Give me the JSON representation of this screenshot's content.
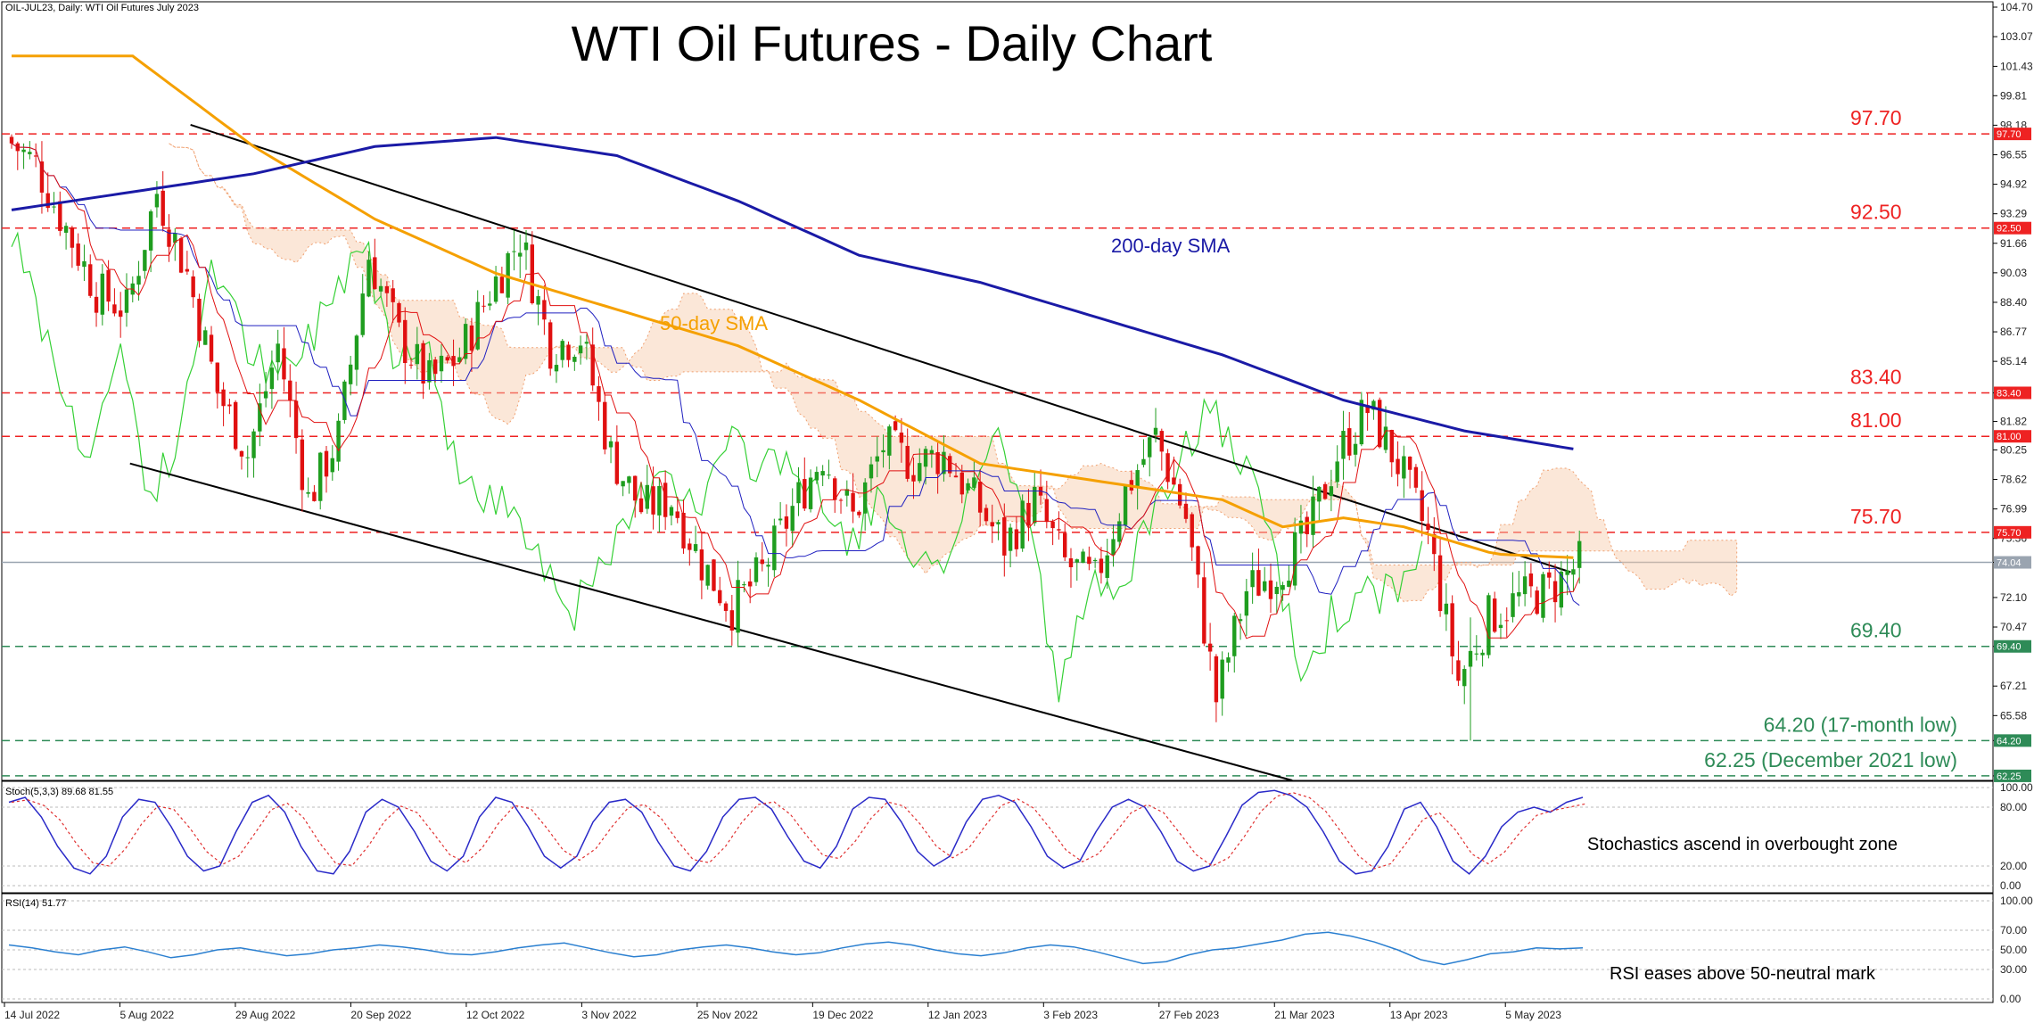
{
  "symbol_label": "OIL-JUL23, Daily:  WTI Oil Futures July 2023",
  "title": "WTI Oil Futures - Daily Chart",
  "colors": {
    "resistance": "#ee2222",
    "support": "#2e8b57",
    "sma200": "#1a1aa6",
    "sma50": "#f5a000",
    "current": "#9aa4b0",
    "candle_up": "#1f9d1f",
    "candle_down": "#e01010",
    "stoch_main": "#2a2ac8",
    "stoch_signal": "#e03030",
    "rsi": "#2a7fd0"
  },
  "annotations": {
    "sma200_label": "200-day SMA",
    "sma50_label": "50-day SMA",
    "stoch_note": "Stochastics ascend in overbought zone",
    "rsi_note": "RSI eases above 50-neutral mark"
  },
  "chart_data": [
    {
      "type": "candlestick",
      "title": "WTI Oil Futures - Daily Chart",
      "symbol": "OIL-JUL23, Daily:  WTI Oil Futures July 2023",
      "ylim": [
        62.0,
        104.7
      ],
      "y_ticks": [
        "104.70",
        "103.07",
        "101.43",
        "99.81",
        "98.18",
        "96.55",
        "94.92",
        "93.29",
        "91.66",
        "90.03",
        "88.40",
        "86.77",
        "85.14",
        "83.40",
        "81.82",
        "80.25",
        "78.62",
        "76.99",
        "75.36",
        "74.04",
        "72.10",
        "70.47",
        "69.40",
        "67.21",
        "65.58",
        "64.20",
        "62.25"
      ],
      "x_labels": [
        "14 Jul 2022",
        "5 Aug 2022",
        "29 Aug 2022",
        "20 Sep 2022",
        "12 Oct 2022",
        "3 Nov 2022",
        "25 Nov 2022",
        "19 Dec 2022",
        "12 Jan 2023",
        "3 Feb 2023",
        "27 Feb 2023",
        "21 Mar 2023",
        "13 Apr 2023",
        "5 May 2023"
      ],
      "current_price": 74.04,
      "levels": [
        {
          "value": 97.7,
          "label": "97.70",
          "badge": "97.70",
          "kind": "resistance"
        },
        {
          "value": 92.5,
          "label": "92.50",
          "badge": "92.50",
          "kind": "resistance"
        },
        {
          "value": 83.4,
          "label": "83.40",
          "badge": "83.40",
          "kind": "resistance"
        },
        {
          "value": 81.0,
          "label": "81.00",
          "badge": "81.00",
          "kind": "resistance"
        },
        {
          "value": 75.7,
          "label": "75.70",
          "badge": "75.70",
          "kind": "resistance"
        },
        {
          "value": 69.4,
          "label": "69.40",
          "badge": "69.40",
          "kind": "support"
        },
        {
          "value": 64.2,
          "label": "64.20 (17-month low)",
          "badge": "64.20",
          "kind": "support"
        },
        {
          "value": 62.25,
          "label": "62.25 (December 2021 low)",
          "badge": "62.25",
          "kind": "support"
        }
      ],
      "close_path": [
        [
          0,
          97.5
        ],
        [
          5,
          96.0
        ],
        [
          10,
          92.5
        ],
        [
          15,
          89.0
        ],
        [
          20,
          88.0
        ],
        [
          25,
          94.5
        ],
        [
          30,
          90.0
        ],
        [
          35,
          83.5
        ],
        [
          40,
          80.0
        ],
        [
          45,
          86.0
        ],
        [
          50,
          77.5
        ],
        [
          55,
          81.0
        ],
        [
          60,
          91.0
        ],
        [
          65,
          86.5
        ],
        [
          70,
          84.0
        ],
        [
          75,
          85.5
        ],
        [
          80,
          89.0
        ],
        [
          85,
          92.0
        ],
        [
          90,
          86.0
        ],
        [
          95,
          86.5
        ],
        [
          100,
          80.0
        ],
        [
          105,
          77.0
        ],
        [
          110,
          77.5
        ],
        [
          115,
          74.0
        ],
        [
          120,
          71.5
        ],
        [
          125,
          73.5
        ],
        [
          130,
          77.0
        ],
        [
          135,
          80.0
        ],
        [
          140,
          76.5
        ],
        [
          145,
          80.5
        ],
        [
          150,
          79.5
        ],
        [
          155,
          80.0
        ],
        [
          160,
          77.5
        ],
        [
          165,
          75.0
        ],
        [
          170,
          77.5
        ],
        [
          175,
          74.0
        ],
        [
          180,
          73.0
        ],
        [
          185,
          78.0
        ],
        [
          190,
          81.0
        ],
        [
          195,
          76.5
        ],
        [
          200,
          66.5
        ],
        [
          205,
          72.5
        ],
        [
          210,
          73.5
        ],
        [
          215,
          75.5
        ],
        [
          220,
          80.0
        ],
        [
          225,
          82.5
        ],
        [
          230,
          79.5
        ],
        [
          235,
          75.5
        ],
        [
          240,
          67.5
        ],
        [
          245,
          71.0
        ],
        [
          250,
          72.0
        ],
        [
          255,
          72.5
        ],
        [
          260,
          74.0
        ]
      ],
      "sma50": [
        [
          0,
          null
        ],
        [
          20,
          102.0
        ],
        [
          40,
          97.0
        ],
        [
          60,
          93.0
        ],
        [
          80,
          90.0
        ],
        [
          100,
          88.0
        ],
        [
          120,
          86.0
        ],
        [
          140,
          83.0
        ],
        [
          160,
          79.5
        ],
        [
          180,
          78.5
        ],
        [
          200,
          77.5
        ],
        [
          210,
          76.0
        ],
        [
          220,
          76.5
        ],
        [
          230,
          76.0
        ],
        [
          245,
          74.5
        ],
        [
          258,
          74.3
        ]
      ],
      "sma200": [
        [
          0,
          93.5
        ],
        [
          20,
          94.5
        ],
        [
          40,
          95.5
        ],
        [
          60,
          97.0
        ],
        [
          80,
          97.5
        ],
        [
          100,
          96.5
        ],
        [
          120,
          94.0
        ],
        [
          140,
          91.0
        ],
        [
          160,
          89.5
        ],
        [
          180,
          87.5
        ],
        [
          200,
          85.5
        ],
        [
          220,
          83.0
        ],
        [
          240,
          81.3
        ],
        [
          258,
          80.3
        ]
      ],
      "channel_upper": [
        [
          30,
          98.2
        ],
        [
          258,
          73.5
        ]
      ],
      "channel_lower": [
        [
          20,
          79.5
        ],
        [
          212,
          62.0
        ]
      ]
    },
    {
      "type": "line",
      "title": "Stoch(5,3,3) 89.68 81.55",
      "ylim": [
        0,
        100
      ],
      "y_ticks": [
        "100.00",
        "80.00",
        "20.00",
        "0.00"
      ],
      "values": [
        85,
        90,
        70,
        40,
        18,
        12,
        30,
        70,
        88,
        85,
        60,
        30,
        15,
        20,
        55,
        85,
        92,
        75,
        40,
        15,
        12,
        35,
        75,
        88,
        80,
        55,
        25,
        15,
        30,
        70,
        90,
        85,
        60,
        30,
        18,
        30,
        65,
        85,
        88,
        75,
        45,
        20,
        15,
        35,
        70,
        88,
        90,
        78,
        50,
        25,
        18,
        40,
        78,
        90,
        88,
        65,
        35,
        20,
        30,
        65,
        88,
        92,
        85,
        60,
        30,
        18,
        25,
        55,
        80,
        88,
        80,
        55,
        25,
        15,
        20,
        50,
        82,
        95,
        97,
        92,
        80,
        55,
        25,
        12,
        15,
        40,
        78,
        85,
        60,
        25,
        12,
        30,
        60,
        75,
        80,
        75,
        85,
        90
      ]
    },
    {
      "type": "line",
      "title": "RSI(14) 51.77",
      "ylim": [
        0,
        100
      ],
      "y_ticks": [
        "100.00",
        "70.00",
        "50.00",
        "30.00",
        "0.00"
      ],
      "values": [
        55,
        52,
        48,
        45,
        50,
        53,
        48,
        42,
        45,
        50,
        52,
        48,
        44,
        46,
        50,
        52,
        55,
        53,
        50,
        46,
        45,
        48,
        52,
        55,
        57,
        52,
        47,
        43,
        45,
        50,
        53,
        55,
        52,
        48,
        45,
        47,
        52,
        56,
        58,
        55,
        50,
        46,
        44,
        47,
        52,
        55,
        53,
        48,
        42,
        36,
        38,
        45,
        50,
        52,
        56,
        60,
        66,
        68,
        64,
        58,
        50,
        40,
        35,
        40,
        46,
        48,
        52,
        51,
        52
      ]
    }
  ]
}
